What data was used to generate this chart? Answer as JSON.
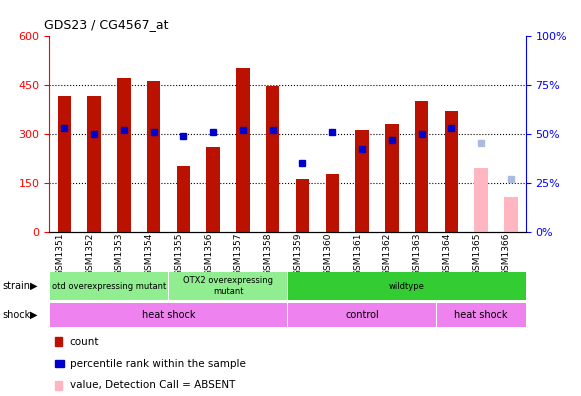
{
  "title": "GDS23 / CG4567_at",
  "samples": [
    "GSM1351",
    "GSM1352",
    "GSM1353",
    "GSM1354",
    "GSM1355",
    "GSM1356",
    "GSM1357",
    "GSM1358",
    "GSM1359",
    "GSM1360",
    "GSM1361",
    "GSM1362",
    "GSM1363",
    "GSM1364",
    "GSM1365",
    "GSM1366"
  ],
  "counts": [
    415,
    415,
    470,
    460,
    200,
    260,
    500,
    445,
    160,
    175,
    310,
    330,
    400,
    370,
    null,
    null
  ],
  "percentile_ranks_pct": [
    53,
    50,
    52,
    51,
    49,
    51,
    52,
    52,
    35,
    51,
    42,
    47,
    50,
    53,
    null,
    null
  ],
  "absent_value": [
    null,
    null,
    null,
    null,
    null,
    null,
    null,
    null,
    null,
    null,
    null,
    null,
    null,
    null,
    195,
    105
  ],
  "absent_rank_pct": [
    null,
    null,
    null,
    null,
    null,
    null,
    null,
    null,
    null,
    null,
    null,
    null,
    null,
    null,
    45,
    27
  ],
  "ylim_left": [
    0,
    600
  ],
  "ylim_right": [
    0,
    100
  ],
  "yticks_left": [
    0,
    150,
    300,
    450,
    600
  ],
  "yticks_right": [
    0,
    25,
    50,
    75,
    100
  ],
  "bar_color": "#BB1100",
  "absent_bar_color": "#FFB6C1",
  "dot_color": "#0000CC",
  "absent_dot_color": "#AABBDD",
  "background_color": "#ffffff",
  "strain_groups": [
    {
      "label": "otd overexpressing mutant",
      "start": 0,
      "end": 4,
      "color": "#90EE90"
    },
    {
      "label": "OTX2 overexpressing\nmutant",
      "start": 4,
      "end": 8,
      "color": "#90EE90"
    },
    {
      "label": "wildtype",
      "start": 8,
      "end": 16,
      "color": "#33CC33"
    }
  ],
  "shock_groups": [
    {
      "label": "heat shock",
      "start": 0,
      "end": 8,
      "color": "#EE82EE"
    },
    {
      "label": "control",
      "start": 8,
      "end": 13,
      "color": "#EE82EE"
    },
    {
      "label": "heat shock",
      "start": 13,
      "end": 16,
      "color": "#EE82EE"
    }
  ]
}
